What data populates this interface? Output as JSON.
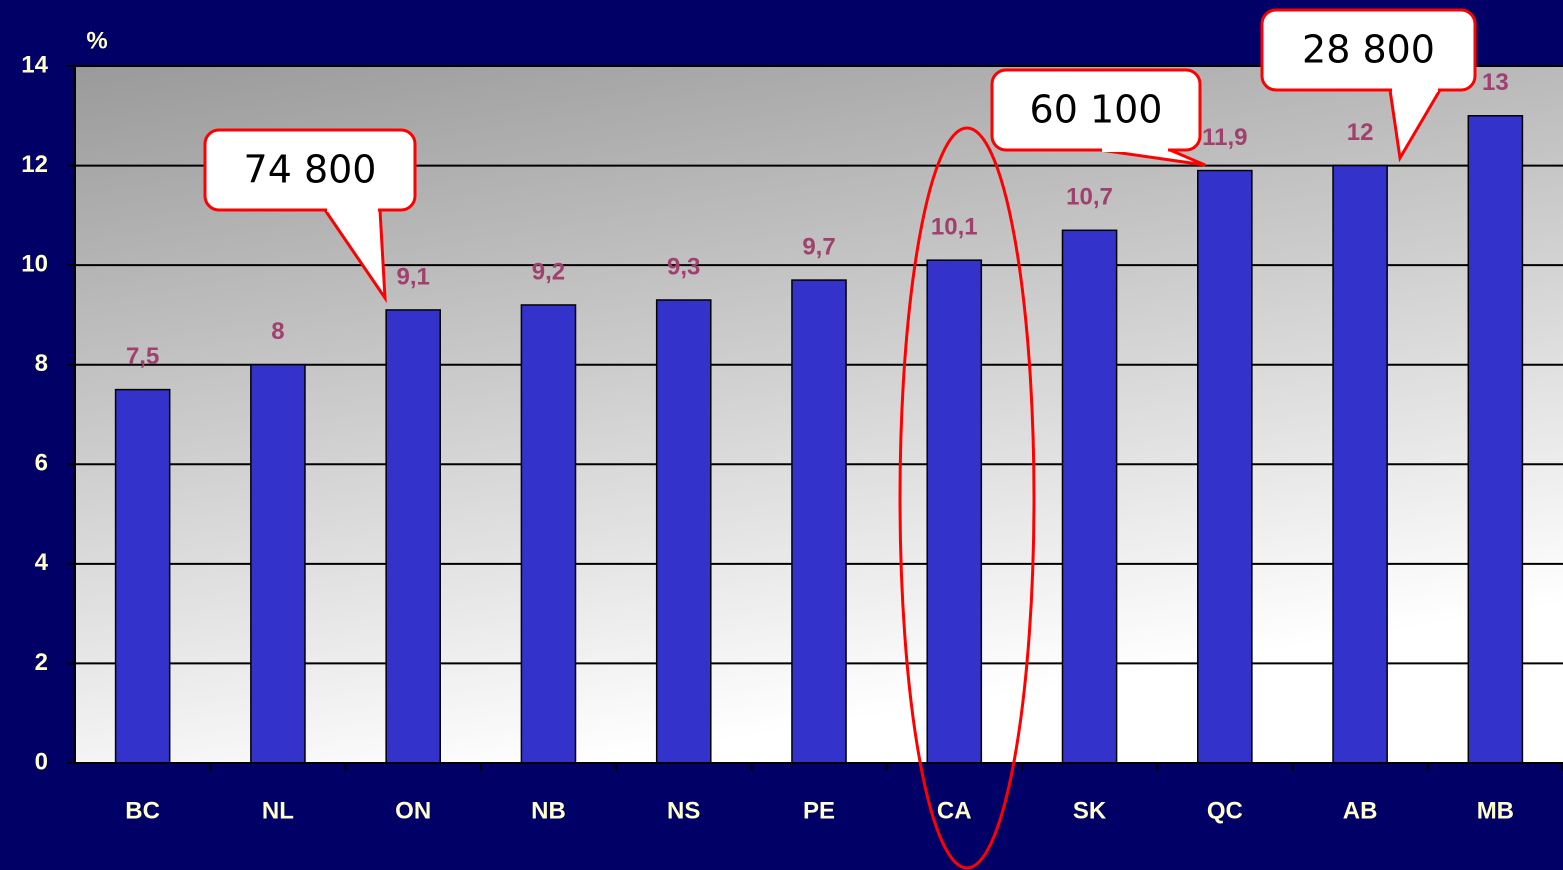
{
  "chart_data": {
    "type": "bar",
    "ylabel": "%",
    "categories": [
      "BC",
      "NL",
      "ON",
      "NB",
      "NS",
      "PE",
      "CA",
      "SK",
      "QC",
      "AB",
      "MB"
    ],
    "values": [
      7.5,
      8,
      9.1,
      9.2,
      9.3,
      9.7,
      10.1,
      10.7,
      11.9,
      12,
      13
    ],
    "value_labels": [
      "7,5",
      "8",
      "9,1",
      "9,2",
      "9,3",
      "9,7",
      "10,1",
      "10,7",
      "11,9",
      "12",
      "13"
    ],
    "color": "#3333cc",
    "ylim": [
      0,
      14
    ],
    "yticks": [
      0,
      2,
      4,
      6,
      8,
      10,
      12,
      14
    ],
    "grid": true,
    "annotations": [
      "74 800",
      "60 100",
      "28 800"
    ]
  }
}
